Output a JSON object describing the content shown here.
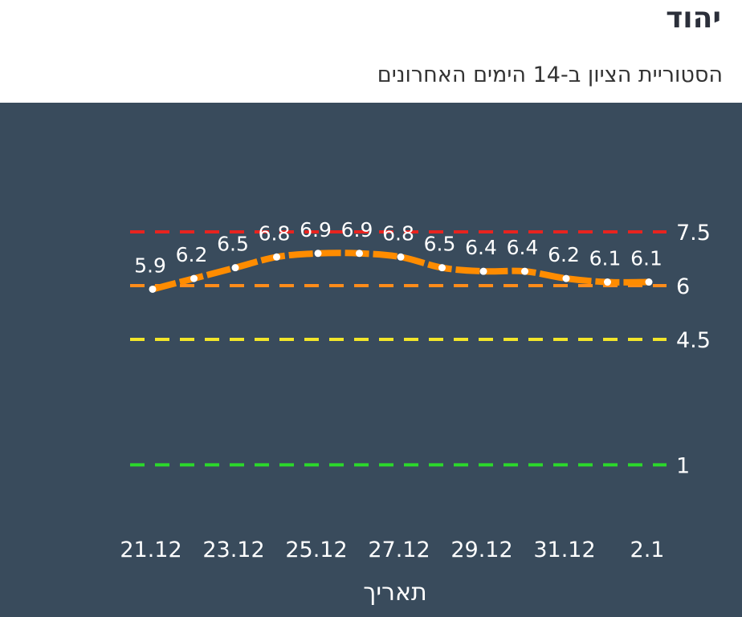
{
  "header": {
    "title": "יהוד",
    "subtitle": "הסטוריית הציון ב-14 הימים האחרונים"
  },
  "chart_data": {
    "type": "line",
    "title": "",
    "xlabel": "תאריך",
    "ylabel": "",
    "x_tick_labels": [
      "21.12",
      "23.12",
      "25.12",
      "27.12",
      "29.12",
      "31.12",
      "2.1"
    ],
    "series": [
      {
        "values": [
          5.9,
          6.2,
          6.5,
          6.8,
          6.9,
          6.9,
          6.8,
          6.5,
          6.4,
          6.4,
          6.2,
          6.1,
          6.1
        ],
        "color": "#ff8c00"
      }
    ],
    "thresholds": [
      {
        "value": 7.5,
        "label": "7.5",
        "color": "#e8231f"
      },
      {
        "value": 6,
        "label": "6",
        "color": "#ff8c1a"
      },
      {
        "value": 4.5,
        "label": "4.5",
        "color": "#f2e52a"
      },
      {
        "value": 1,
        "label": "1",
        "color": "#2bd92b"
      }
    ],
    "background": "#394b5c",
    "grid": false,
    "legend": "none"
  }
}
